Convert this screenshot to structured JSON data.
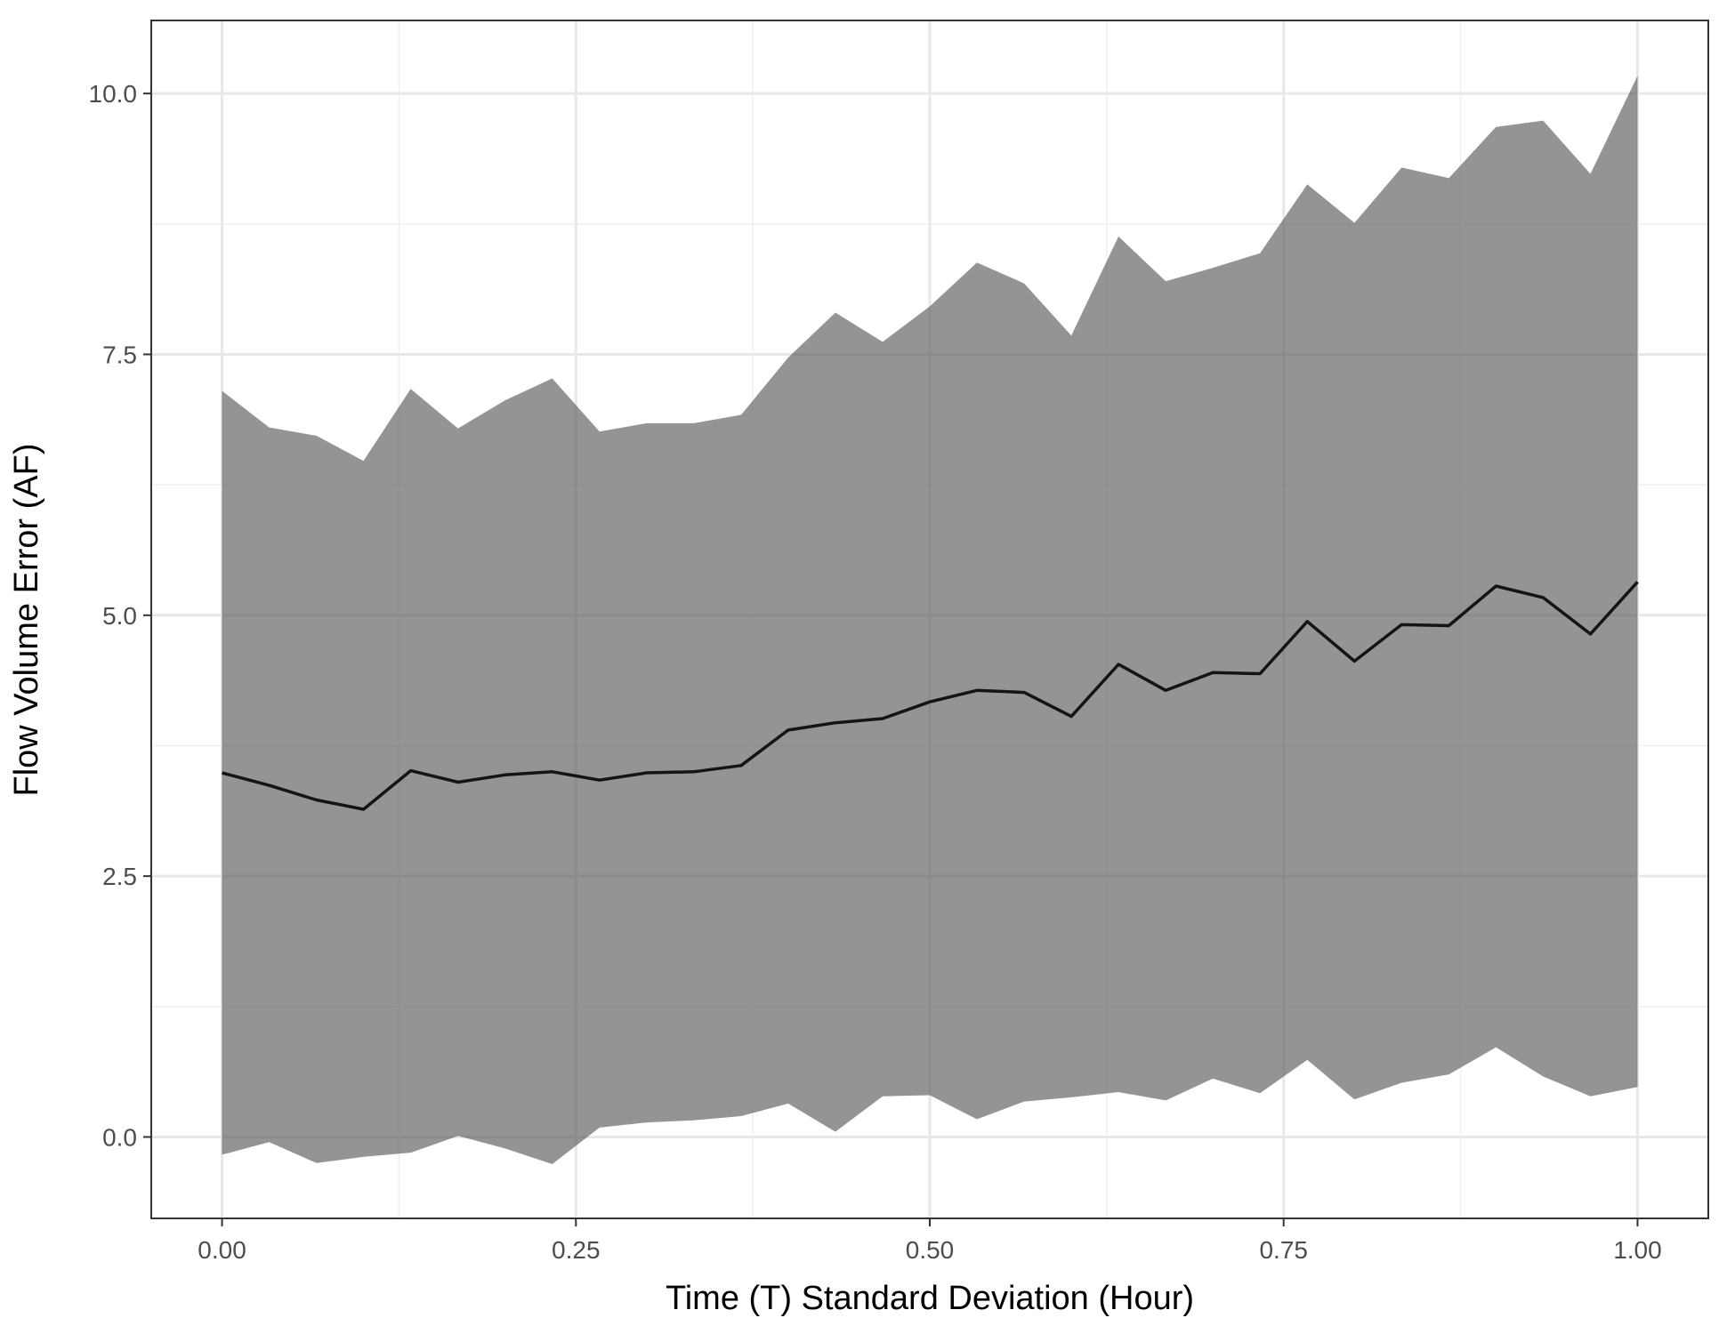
{
  "chart_data": {
    "type": "area",
    "title": "",
    "xlabel": "Time (T) Standard Deviation (Hour)",
    "ylabel": "Flow Volume Error (AF)",
    "xlim": [
      -0.05,
      1.05
    ],
    "ylim": [
      -0.78,
      10.7
    ],
    "x_ticks": [
      0.0,
      0.25,
      0.5,
      0.75,
      1.0
    ],
    "x_tick_labels": [
      "0.00",
      "0.25",
      "0.50",
      "0.75",
      "1.00"
    ],
    "y_ticks": [
      0.0,
      2.5,
      5.0,
      7.5,
      10.0
    ],
    "y_tick_labels": [
      "0.0",
      "2.5",
      "5.0",
      "7.5",
      "10.0"
    ],
    "grid": true,
    "legend": "none",
    "ribbon_color": "#5c5c5c",
    "line_color": "#141414",
    "x": [
      0.0,
      0.0333,
      0.0667,
      0.1,
      0.1333,
      0.1667,
      0.2,
      0.2333,
      0.2667,
      0.3,
      0.3333,
      0.3667,
      0.4,
      0.4333,
      0.4667,
      0.5,
      0.5333,
      0.5667,
      0.6,
      0.6333,
      0.6667,
      0.7,
      0.7333,
      0.7667,
      0.8,
      0.8333,
      0.8667,
      0.9,
      0.9333,
      0.9667,
      1.0
    ],
    "series": [
      {
        "role": "mean",
        "values": [
          3.49,
          3.37,
          3.23,
          3.14,
          3.51,
          3.4,
          3.47,
          3.5,
          3.42,
          3.49,
          3.5,
          3.56,
          3.9,
          3.97,
          4.01,
          4.17,
          4.28,
          4.26,
          4.03,
          4.53,
          4.28,
          4.45,
          4.44,
          4.94,
          4.56,
          4.91,
          4.9,
          5.28,
          5.17,
          4.82,
          5.32
        ]
      },
      {
        "role": "upper",
        "values": [
          7.15,
          6.8,
          6.72,
          6.48,
          7.17,
          6.79,
          7.06,
          7.27,
          6.76,
          6.84,
          6.84,
          6.92,
          7.47,
          7.9,
          7.62,
          7.96,
          8.38,
          8.18,
          7.68,
          8.63,
          8.2,
          8.33,
          8.47,
          9.13,
          8.76,
          9.29,
          9.19,
          9.68,
          9.74,
          9.23,
          10.17
        ]
      },
      {
        "role": "lower",
        "values": [
          -0.17,
          -0.05,
          -0.25,
          -0.19,
          -0.15,
          0.01,
          -0.11,
          -0.26,
          0.09,
          0.14,
          0.16,
          0.2,
          0.32,
          0.05,
          0.39,
          0.4,
          0.17,
          0.34,
          0.38,
          0.43,
          0.35,
          0.56,
          0.42,
          0.74,
          0.36,
          0.52,
          0.6,
          0.86,
          0.58,
          0.39,
          0.48
        ]
      }
    ]
  }
}
